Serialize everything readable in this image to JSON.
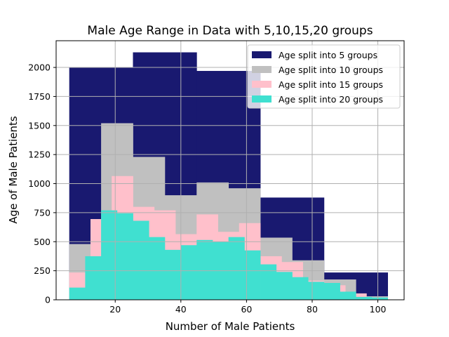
{
  "chart_data": {
    "type": "histogram",
    "title": "Male Age Range in Data with 5,10,15,20 groups",
    "xlabel": "Number of Male Patients",
    "ylabel": "Age of Male Patients",
    "xlim": [
      2,
      108
    ],
    "ylim": [
      0,
      2230
    ],
    "xticks": [
      20,
      40,
      60,
      80,
      100
    ],
    "yticks": [
      0,
      250,
      500,
      750,
      1000,
      1250,
      1500,
      1750,
      2000
    ],
    "grid": true,
    "legend_position": "top-right",
    "series": [
      {
        "name": "Age split into 5 groups",
        "color": "#191970",
        "edges": [
          6,
          25.4,
          44.8,
          64.2,
          83.6,
          103
        ],
        "values": [
          2000,
          2130,
          1970,
          880,
          235
        ]
      },
      {
        "name": "Age split into 10 groups",
        "color": "#c0c0c0",
        "edges": [
          6,
          15.7,
          25.4,
          35.1,
          44.8,
          54.5,
          64.2,
          73.9,
          83.6,
          93.3,
          103
        ],
        "values": [
          480,
          1520,
          1230,
          900,
          1010,
          960,
          535,
          340,
          175,
          30
        ]
      },
      {
        "name": "Age split into 15 groups",
        "color": "#ffc0cb",
        "edges": [
          6,
          12.47,
          18.93,
          25.4,
          31.87,
          38.33,
          44.8,
          51.27,
          57.73,
          64.2,
          70.67,
          77.13,
          83.6,
          90.07,
          96.53,
          103
        ],
        "values": [
          235,
          695,
          1065,
          800,
          770,
          565,
          735,
          585,
          660,
          375,
          325,
          165,
          125,
          55,
          20
        ]
      },
      {
        "name": "Age split into 20 groups",
        "color": "#40e0d0",
        "edges": [
          6,
          10.85,
          15.7,
          20.55,
          25.4,
          30.25,
          35.1,
          39.95,
          44.8,
          49.65,
          54.5,
          59.35,
          64.2,
          69.05,
          73.9,
          78.75,
          83.6,
          88.45,
          93.3,
          98.15,
          103
        ],
        "values": [
          105,
          375,
          770,
          745,
          680,
          540,
          430,
          470,
          515,
          500,
          540,
          425,
          305,
          240,
          195,
          155,
          145,
          70,
          25,
          20
        ]
      }
    ]
  }
}
